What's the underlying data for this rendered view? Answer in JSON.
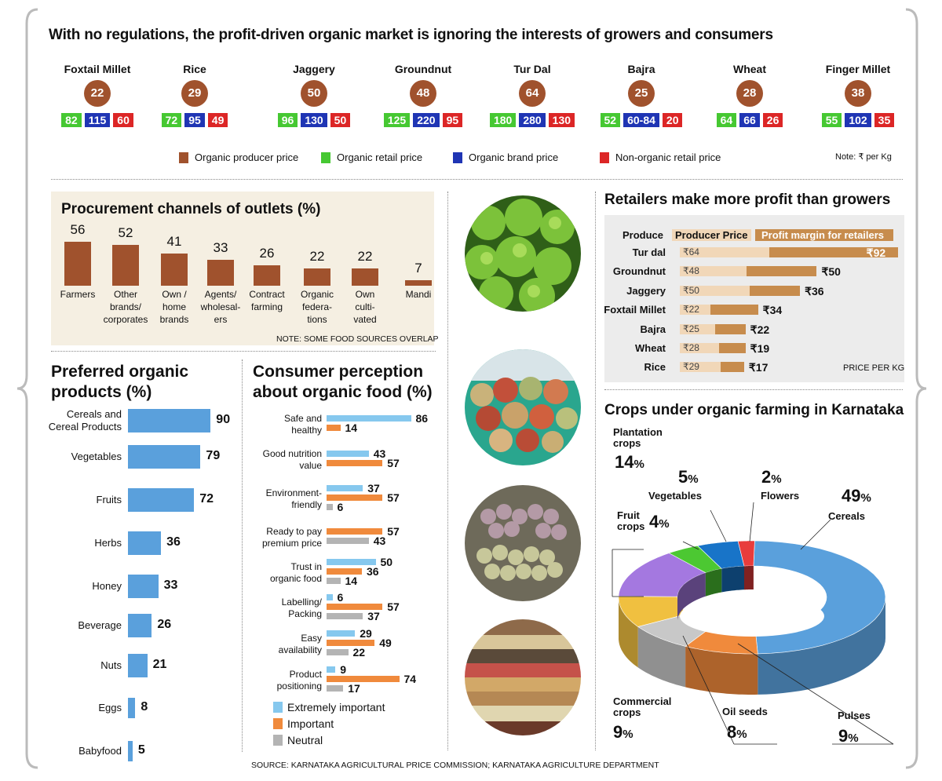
{
  "title": "With no regulations, the profit-driven organic market is ignoring the interests of growers and consumers",
  "colors": {
    "producer": "#a0522d",
    "retail": "#46c832",
    "brand": "#1f35b4",
    "nonorganic": "#dc2626",
    "bar_blue": "#5aa0dc",
    "bar_orange": "#f08a3c",
    "bar_lightblue": "#86c8ee",
    "bar_gray": "#b4b4b4"
  },
  "prices": {
    "items": [
      {
        "name": "Foxtail Millet",
        "producer": "22",
        "retail": "82",
        "brand": "115",
        "nonorganic": "60"
      },
      {
        "name": "Rice",
        "producer": "29",
        "retail": "72",
        "brand": "95",
        "nonorganic": "49"
      },
      {
        "name": "Jaggery",
        "producer": "50",
        "retail": "96",
        "brand": "130",
        "nonorganic": "50"
      },
      {
        "name": "Groundnut",
        "producer": "48",
        "retail": "125",
        "brand": "220",
        "nonorganic": "95"
      },
      {
        "name": "Tur Dal",
        "producer": "64",
        "retail": "180",
        "brand": "280",
        "nonorganic": "130"
      },
      {
        "name": "Bajra",
        "producer": "25",
        "retail": "52",
        "brand": "60-84",
        "nonorganic": "20"
      },
      {
        "name": "Wheat",
        "producer": "28",
        "retail": "64",
        "brand": "66",
        "nonorganic": "26"
      },
      {
        "name": "Finger Millet",
        "producer": "38",
        "retail": "55",
        "brand": "102",
        "nonorganic": "35"
      }
    ],
    "legend": [
      "Organic producer price",
      "Organic retail price",
      "Organic brand price",
      "Non-organic retail price"
    ],
    "note": "Note: ₹ per Kg"
  },
  "chart_data": [
    {
      "type": "bar",
      "title": "Procurement channels of outlets (%)",
      "categories": [
        "Farmers",
        "Other brands/ corporates",
        "Own / home brands",
        "Agents/ wholesal-ers",
        "Contract farming",
        "Organic federa-tions",
        "Own culti-vated",
        "Mandi"
      ],
      "category_lines": [
        [
          "Farmers"
        ],
        [
          "Other",
          "brands/",
          "corporates"
        ],
        [
          "Own /",
          "home",
          "brands"
        ],
        [
          "Agents/",
          "wholesal-",
          "ers"
        ],
        [
          "Contract",
          "farming"
        ],
        [
          "Organic",
          "federa-",
          "tions"
        ],
        [
          "Own",
          "culti-",
          "vated"
        ],
        [
          "Mandi"
        ]
      ],
      "values": [
        56,
        52,
        41,
        33,
        26,
        22,
        22,
        7
      ],
      "note": "NOTE: SOME FOOD SOURCES OVERLAP"
    },
    {
      "type": "bar",
      "orientation": "horizontal",
      "title": "Preferred organic products (%)",
      "title_lines": [
        "Preferred organic",
        "products (%)"
      ],
      "categories": [
        "Cereals and Cereal Products",
        "Vegetables",
        "Fruits",
        "Herbs",
        "Honey",
        "Beverage",
        "Nuts",
        "Eggs",
        "Babyfood"
      ],
      "category_lines": [
        [
          "Cereals and",
          "Cereal Products"
        ],
        [
          "Vegetables"
        ],
        [
          "Fruits"
        ],
        [
          "Herbs"
        ],
        [
          "Honey"
        ],
        [
          "Beverage"
        ],
        [
          "Nuts"
        ],
        [
          "Eggs"
        ],
        [
          "Babyfood"
        ]
      ],
      "values": [
        90,
        79,
        72,
        36,
        33,
        26,
        21,
        8,
        5
      ]
    },
    {
      "type": "bar",
      "orientation": "horizontal",
      "title": "Consumer perception about organic food (%)",
      "title_lines": [
        "Consumer perception",
        "about organic food (%)"
      ],
      "categories": [
        "Safe and healthy",
        "Good nutrition value",
        "Environment-friendly",
        "Ready to pay premium price",
        "Trust in organic food",
        "Labelling/ Packing",
        "Easy availability",
        "Product positioning"
      ],
      "category_lines": [
        [
          "Safe and",
          "healthy"
        ],
        [
          "Good nutrition",
          "value"
        ],
        [
          "Environment-",
          "friendly"
        ],
        [
          "Ready to pay",
          "premium price"
        ],
        [
          "Trust in",
          "organic food"
        ],
        [
          "Labelling/",
          "Packing"
        ],
        [
          "Easy",
          "availability"
        ],
        [
          "Product",
          "positioning"
        ]
      ],
      "series": [
        {
          "name": "Extremely important",
          "values": [
            86,
            43,
            37,
            null,
            50,
            6,
            29,
            9
          ]
        },
        {
          "name": "Important",
          "values": [
            14,
            57,
            57,
            57,
            36,
            57,
            49,
            74
          ]
        },
        {
          "name": "Neutral",
          "values": [
            null,
            null,
            6,
            43,
            14,
            37,
            22,
            17
          ]
        }
      ]
    },
    {
      "type": "bar",
      "orientation": "horizontal",
      "stacked": true,
      "title": "Retailers make more profit than growers",
      "header": {
        "col1": "Produce",
        "col2": "Producer Price",
        "col3": "Profit margin for retailers"
      },
      "categories": [
        "Tur dal",
        "Groundnut",
        "Jaggery",
        "Foxtail Millet",
        "Bajra",
        "Wheat",
        "Rice"
      ],
      "series": [
        {
          "name": "Producer Price",
          "values": [
            64,
            48,
            50,
            22,
            25,
            28,
            29
          ],
          "labels": [
            "₹64",
            "₹48",
            "₹50",
            "₹22",
            "₹25",
            "₹28",
            "₹29"
          ]
        },
        {
          "name": "Profit margin for retailers",
          "values": [
            92,
            50,
            36,
            34,
            22,
            19,
            17
          ],
          "labels": [
            "₹92",
            "₹50",
            "₹36",
            "₹34",
            "₹22",
            "₹19",
            "₹17"
          ]
        }
      ],
      "note": "PRICE PER KG"
    },
    {
      "type": "pie",
      "donut": true,
      "title": "Crops under organic farming in Karnataka",
      "slices": [
        {
          "label": "Cereals",
          "value": 49,
          "pct": "49",
          "color": "#5aa0dc"
        },
        {
          "label": "Pulses",
          "value": 9,
          "pct": "9",
          "color": "#f08a3c"
        },
        {
          "label": "Oil seeds",
          "value": 8,
          "pct": "8",
          "color": "#c8c8c8"
        },
        {
          "label": "Commercial crops",
          "value": 9,
          "pct": "9",
          "color": "#f0c040"
        },
        {
          "label": "Plantation crops",
          "value": 14,
          "pct": "14",
          "color": "#a478e0"
        },
        {
          "label": "Fruit crops",
          "value": 4,
          "pct": "4",
          "color": "#4cc832"
        },
        {
          "label": "Vegetables",
          "value": 5,
          "pct": "5",
          "color": "#1874c8"
        },
        {
          "label": "Flowers",
          "value": 2,
          "pct": "2",
          "color": "#e83c3c"
        }
      ]
    }
  ],
  "consumer_legend": [
    "Extremely important",
    "Important",
    "Neutral"
  ],
  "source": "SOURCE: KARNATAKA AGRICULTURAL PRICE COMMISSION; KARNATAKA AGRICULTURE DEPARTMENT"
}
